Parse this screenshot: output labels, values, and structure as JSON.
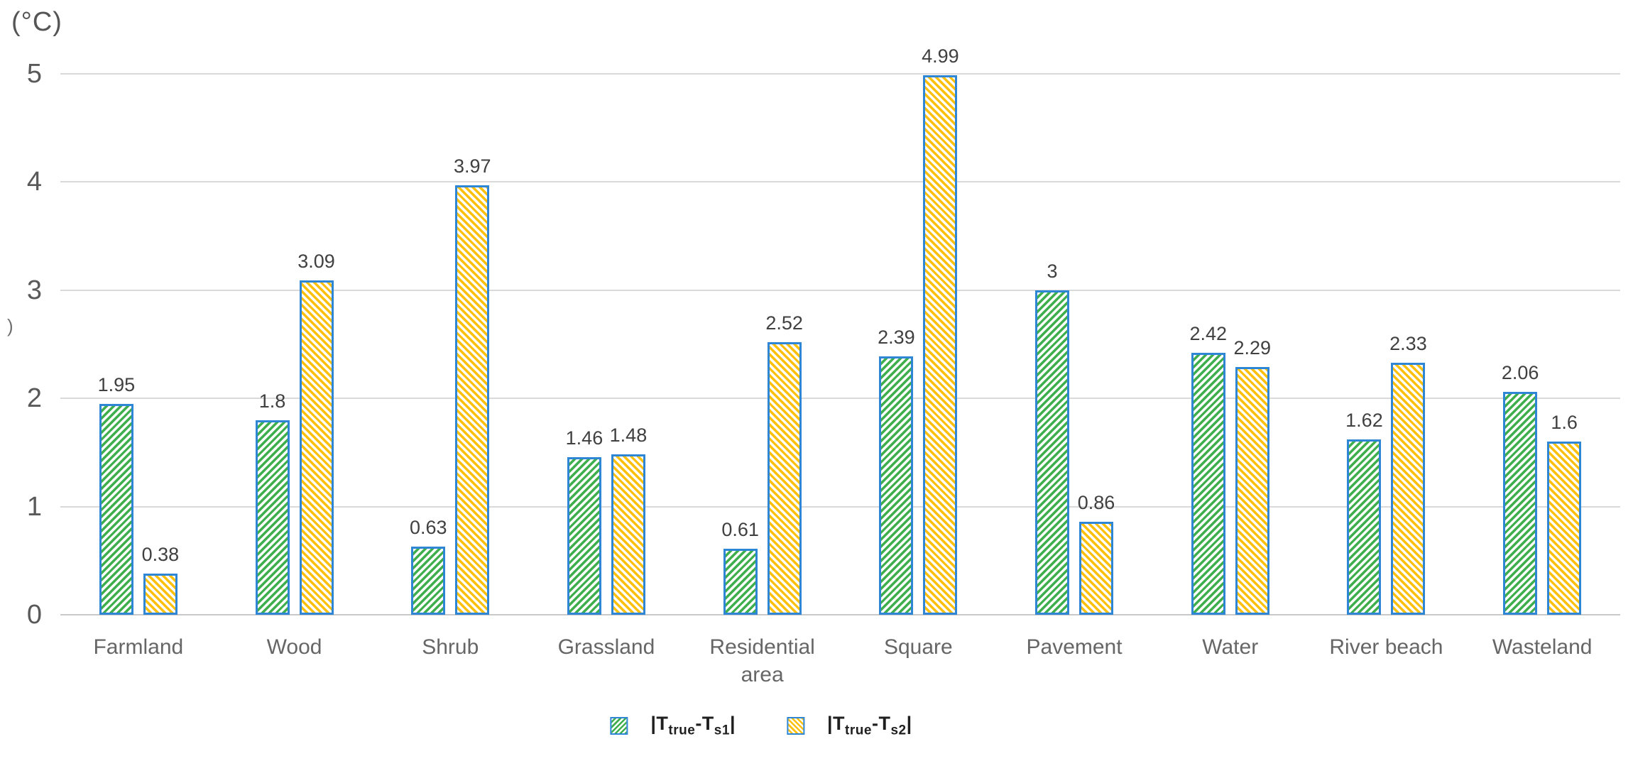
{
  "chart": {
    "unit_label": "(°C)",
    "axis_artifact": ")"
  },
  "chart_data": {
    "type": "bar",
    "title": "",
    "xlabel": "",
    "ylabel": "(°C)",
    "categories": [
      "Farmland",
      "Wood",
      "Shrub",
      "Grassland",
      "Residential area",
      "Square",
      "Pavement",
      "Water",
      "River beach",
      "Wasteland"
    ],
    "series": [
      {
        "name": "|T_true-T_s1|",
        "values": [
          1.95,
          1.8,
          0.63,
          1.46,
          0.61,
          2.39,
          3,
          2.42,
          1.62,
          2.06
        ],
        "labels": [
          "1.95",
          "1.8",
          "0.63",
          "1.46",
          "0.61",
          "2.39",
          "3",
          "2.42",
          "1.62",
          "2.06"
        ],
        "color": "#3fae4d",
        "hatch": "forward-diagonal"
      },
      {
        "name": "|T_true-T_s2|",
        "values": [
          0.38,
          3.09,
          3.97,
          1.48,
          2.52,
          4.99,
          0.86,
          2.29,
          2.33,
          1.6
        ],
        "labels": [
          "0.38",
          "3.09",
          "3.97",
          "1.48",
          "2.52",
          "4.99",
          "0.86",
          "2.29",
          "2.33",
          "1.6"
        ],
        "color": "#fcc00d",
        "hatch": "backward-diagonal"
      }
    ],
    "ylim": [
      0,
      5
    ],
    "yticks": [
      0,
      1,
      2,
      3,
      4,
      5
    ],
    "grid": true,
    "legend_position": "bottom",
    "colors": {
      "bar_border": "#2f86d5",
      "gridline": "#d9d9d9",
      "gridline_baseline": "#c9c9c9",
      "axis_text": "#595959",
      "data_label_text": "#404040"
    }
  },
  "legend": {
    "items": [
      {
        "parts": {
          "open": "|T",
          "sub1": "true",
          "mid": "-T",
          "sub2": "s1",
          "close": "|"
        }
      },
      {
        "parts": {
          "open": "|T",
          "sub1": "true",
          "mid": "-T",
          "sub2": "s2",
          "close": "|"
        }
      }
    ]
  }
}
